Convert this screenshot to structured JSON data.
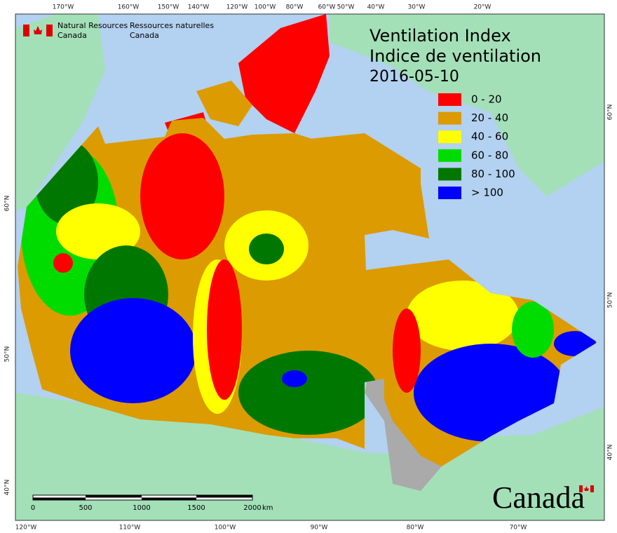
{
  "header": {
    "agency_en_1": "Natural Resources",
    "agency_en_2": "Canada",
    "agency_fr_1": "Ressources naturelles",
    "agency_fr_2": "Canada"
  },
  "title": {
    "english": "Ventilation Index",
    "french": "Indice de ventilation",
    "date": "2016-05-10"
  },
  "legend": [
    {
      "label": "0 - 20",
      "color": "#ff0000"
    },
    {
      "label": "20 - 40",
      "color": "#dc9b00"
    },
    {
      "label": "40 - 60",
      "color": "#ffff00"
    },
    {
      "label": "60 - 80",
      "color": "#00dc00"
    },
    {
      "label": "80 - 100",
      "color": "#007800"
    },
    {
      "label": "> 100",
      "color": "#0000ff"
    }
  ],
  "top_longitudes": [
    "170°W",
    "160°W",
    "150°W",
    "140°W",
    "120°W",
    "100°W",
    "80°W",
    "60°W",
    "50°W",
    "40°W",
    "30°W",
    "20°W"
  ],
  "bottom_longitudes": [
    "120°W",
    "110°W",
    "100°W",
    "90°W",
    "80°W",
    "70°W"
  ],
  "left_latitudes": [
    "60°N",
    "50°N",
    "40°N"
  ],
  "right_latitudes": [
    "60°N",
    "50°N",
    "40°N"
  ],
  "scale_bar": {
    "labels": [
      "0",
      "500",
      "1000",
      "1500",
      "2000"
    ],
    "unit": "km"
  },
  "wordmark": "Canada"
}
